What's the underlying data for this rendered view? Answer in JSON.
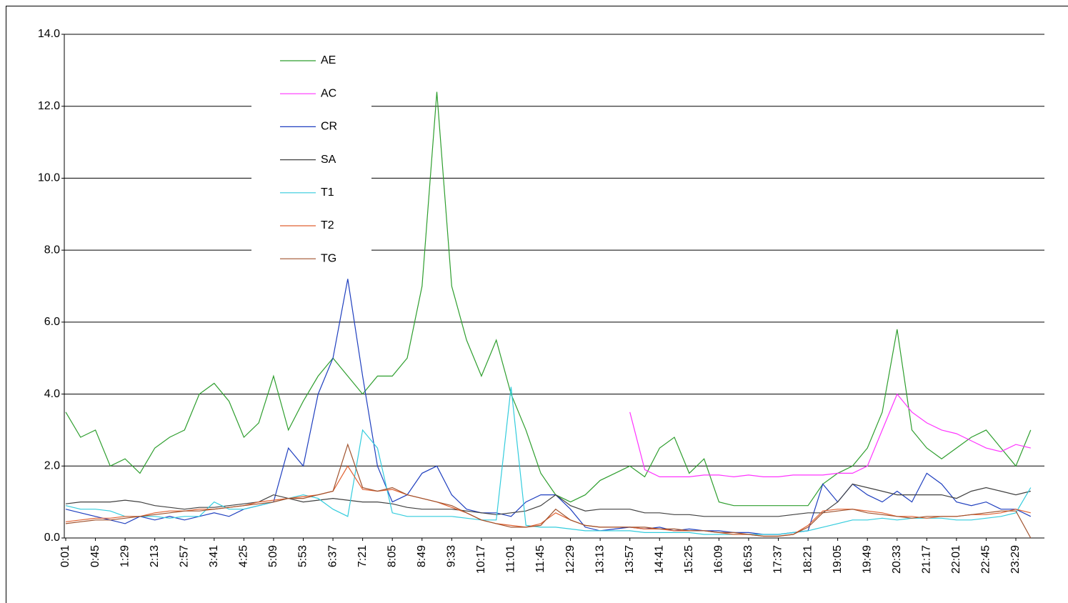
{
  "chart_data": {
    "type": "line",
    "categories": [
      "0:01",
      null,
      "0:45",
      null,
      "1:29",
      null,
      "2:13",
      null,
      "2:57",
      null,
      "3:41",
      null,
      "4:25",
      null,
      "5:09",
      null,
      "5:53",
      null,
      "6:37",
      null,
      "7:21",
      null,
      "8:05",
      null,
      "8:49",
      null,
      "9:33",
      null,
      "10:17",
      null,
      "11:01",
      null,
      "11:45",
      null,
      "12:29",
      null,
      "13:13",
      null,
      "13:57",
      null,
      "14:41",
      null,
      "15:25",
      null,
      "16:09",
      null,
      "16:53",
      null,
      "17:37",
      null,
      "18:21",
      null,
      "19:05",
      null,
      "19:49",
      null,
      "20:33",
      null,
      "21:17",
      null,
      "22:01",
      null,
      "22:45",
      null,
      "23:29",
      null
    ],
    "series": [
      {
        "name": "AE",
        "color": "#2e9e2e",
        "values": [
          3.5,
          2.8,
          3.0,
          2.0,
          2.2,
          1.8,
          2.5,
          2.8,
          3.0,
          4.0,
          4.3,
          3.8,
          2.8,
          3.2,
          4.5,
          3.0,
          3.8,
          4.5,
          5.0,
          4.5,
          4.0,
          4.5,
          4.5,
          5.0,
          7.0,
          12.4,
          7.0,
          5.5,
          4.5,
          5.5,
          4.0,
          3.0,
          1.8,
          1.2,
          1.0,
          1.2,
          1.6,
          1.8,
          2.0,
          1.7,
          2.5,
          2.8,
          1.8,
          2.2,
          1.0,
          0.9,
          0.9,
          0.9,
          0.9,
          0.9,
          0.9,
          1.5,
          1.8,
          2.0,
          2.5,
          3.5,
          5.8,
          3.0,
          2.5,
          2.2,
          2.5,
          2.8,
          3.0,
          2.5,
          2.0,
          3.0
        ]
      },
      {
        "name": "AC",
        "color": "#ff33ff",
        "values": [
          null,
          null,
          null,
          null,
          null,
          null,
          null,
          null,
          null,
          null,
          null,
          null,
          null,
          null,
          null,
          null,
          null,
          null,
          null,
          null,
          null,
          null,
          null,
          null,
          null,
          null,
          null,
          null,
          null,
          null,
          null,
          null,
          null,
          null,
          null,
          null,
          null,
          null,
          3.5,
          1.9,
          1.7,
          1.7,
          1.7,
          1.75,
          1.75,
          1.7,
          1.75,
          1.7,
          1.7,
          1.75,
          1.75,
          1.75,
          1.8,
          1.8,
          2.0,
          3.0,
          4.0,
          3.5,
          3.2,
          3.0,
          2.9,
          2.7,
          2.5,
          2.4,
          2.6,
          2.5
        ]
      },
      {
        "name": "CR",
        "color": "#1f3fbf",
        "values": [
          0.8,
          0.7,
          0.6,
          0.5,
          0.4,
          0.6,
          0.5,
          0.6,
          0.5,
          0.6,
          0.7,
          0.6,
          0.8,
          0.9,
          1.0,
          2.5,
          2.0,
          4.0,
          5.0,
          7.2,
          4.5,
          2.0,
          1.0,
          1.2,
          1.8,
          2.0,
          1.2,
          0.8,
          0.7,
          0.7,
          0.6,
          1.0,
          1.2,
          1.2,
          0.8,
          0.3,
          0.2,
          0.25,
          0.3,
          0.25,
          0.3,
          0.2,
          0.25,
          0.2,
          0.2,
          0.15,
          0.15,
          0.1,
          0.1,
          0.15,
          0.2,
          1.5,
          1.0,
          1.5,
          1.2,
          1.0,
          1.3,
          1.0,
          1.8,
          1.5,
          1.0,
          0.9,
          1.0,
          0.8,
          0.8,
          0.6
        ]
      },
      {
        "name": "SA",
        "color": "#404040",
        "values": [
          0.95,
          1.0,
          1.0,
          1.0,
          1.05,
          1.0,
          0.9,
          0.85,
          0.8,
          0.85,
          0.85,
          0.9,
          0.95,
          1.0,
          1.2,
          1.1,
          1.0,
          1.05,
          1.1,
          1.05,
          1.0,
          1.0,
          0.95,
          0.85,
          0.8,
          0.8,
          0.8,
          0.75,
          0.7,
          0.65,
          0.7,
          0.75,
          0.9,
          1.2,
          0.9,
          0.75,
          0.8,
          0.8,
          0.8,
          0.7,
          0.7,
          0.65,
          0.65,
          0.6,
          0.6,
          0.6,
          0.6,
          0.6,
          0.6,
          0.65,
          0.7,
          0.7,
          1.0,
          1.5,
          1.4,
          1.3,
          1.2,
          1.2,
          1.2,
          1.2,
          1.1,
          1.3,
          1.4,
          1.3,
          1.2,
          1.3
        ]
      },
      {
        "name": "T1",
        "color": "#33ccdd",
        "values": [
          0.9,
          0.8,
          0.8,
          0.75,
          0.6,
          0.6,
          0.6,
          0.55,
          0.6,
          0.6,
          1.0,
          0.8,
          0.8,
          0.9,
          1.0,
          1.1,
          1.2,
          1.1,
          0.8,
          0.6,
          3.0,
          2.5,
          0.7,
          0.6,
          0.6,
          0.6,
          0.6,
          0.55,
          0.5,
          0.5,
          4.2,
          0.35,
          0.3,
          0.3,
          0.25,
          0.2,
          0.2,
          0.2,
          0.2,
          0.15,
          0.15,
          0.15,
          0.15,
          0.1,
          0.1,
          0.1,
          0.1,
          0.1,
          0.1,
          0.15,
          0.2,
          0.3,
          0.4,
          0.5,
          0.5,
          0.55,
          0.5,
          0.55,
          0.55,
          0.55,
          0.5,
          0.5,
          0.55,
          0.6,
          0.7,
          1.4
        ]
      },
      {
        "name": "T2",
        "color": "#e06030",
        "values": [
          0.45,
          0.5,
          0.55,
          0.55,
          0.6,
          0.6,
          0.7,
          0.75,
          0.75,
          0.8,
          0.8,
          0.85,
          0.9,
          1.0,
          1.05,
          1.1,
          1.15,
          1.2,
          1.3,
          2.0,
          1.35,
          1.3,
          1.35,
          1.2,
          1.1,
          1.0,
          0.85,
          0.7,
          0.5,
          0.4,
          0.35,
          0.3,
          0.4,
          0.7,
          0.5,
          0.35,
          0.3,
          0.3,
          0.3,
          0.25,
          0.25,
          0.2,
          0.2,
          0.2,
          0.15,
          0.1,
          0.1,
          0.05,
          0.05,
          0.1,
          0.35,
          0.75,
          0.8,
          0.8,
          0.75,
          0.7,
          0.6,
          0.6,
          0.55,
          0.6,
          0.6,
          0.65,
          0.65,
          0.7,
          0.8,
          0.7
        ]
      },
      {
        "name": "TG",
        "color": "#a0522d",
        "values": [
          0.4,
          0.45,
          0.5,
          0.5,
          0.55,
          0.6,
          0.65,
          0.7,
          0.75,
          0.75,
          0.8,
          0.85,
          0.9,
          0.95,
          1.0,
          1.1,
          1.1,
          1.2,
          1.3,
          2.6,
          1.4,
          1.3,
          1.4,
          1.2,
          1.1,
          1.0,
          0.9,
          0.7,
          0.5,
          0.4,
          0.3,
          0.3,
          0.35,
          0.8,
          0.5,
          0.35,
          0.3,
          0.3,
          0.3,
          0.3,
          0.25,
          0.25,
          0.2,
          0.2,
          0.15,
          0.15,
          0.1,
          0.05,
          0.05,
          0.1,
          0.3,
          0.7,
          0.75,
          0.8,
          0.7,
          0.65,
          0.6,
          0.55,
          0.6,
          0.6,
          0.6,
          0.65,
          0.7,
          0.75,
          0.75,
          0.0
        ]
      }
    ],
    "ylim": [
      0,
      14
    ],
    "yticks": [
      {
        "value": 0,
        "label": "0.0"
      },
      {
        "value": 2,
        "label": "2.0"
      },
      {
        "value": 4,
        "label": "4.0"
      },
      {
        "value": 6,
        "label": "6.0"
      },
      {
        "value": 8,
        "label": "8.0"
      },
      {
        "value": 10,
        "label": "10.0"
      },
      {
        "value": 12,
        "label": "12.0"
      },
      {
        "value": 14,
        "label": "14.0"
      }
    ],
    "grid": true,
    "legend": "upper left"
  }
}
